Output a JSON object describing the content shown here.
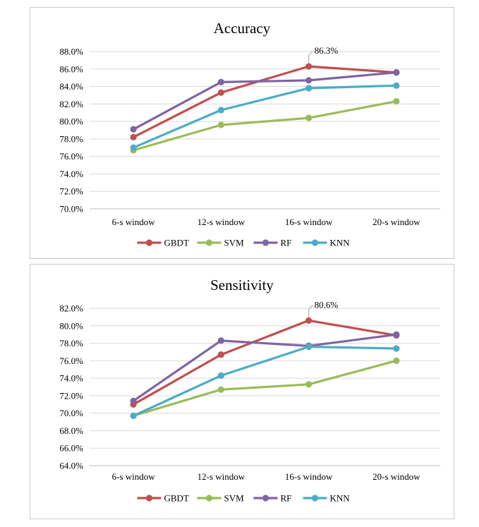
{
  "chart_data": [
    {
      "type": "line",
      "title": "Accuracy",
      "categories": [
        "6-s window",
        "12-s window",
        "16-s window",
        "20-s window"
      ],
      "ylim": [
        70.0,
        88.0
      ],
      "ytick_step": 2.0,
      "grid": true,
      "legend_position": "bottom",
      "series": [
        {
          "name": "GBDT",
          "color": "#c0504d",
          "values": [
            78.2,
            83.3,
            86.3,
            85.6
          ]
        },
        {
          "name": "SVM",
          "color": "#9bbb59",
          "values": [
            76.7,
            79.6,
            80.4,
            82.3
          ]
        },
        {
          "name": "RF",
          "color": "#8064a2",
          "values": [
            79.1,
            84.5,
            84.7,
            85.6
          ]
        },
        {
          "name": "KNN",
          "color": "#4bacc6",
          "values": [
            77.0,
            81.3,
            83.8,
            84.1
          ]
        }
      ],
      "annotation": {
        "series": "GBDT",
        "index": 2,
        "label": "86.3%"
      }
    },
    {
      "type": "line",
      "title": "Sensitivity",
      "categories": [
        "6-s window",
        "12-s window",
        "16-s window",
        "20-s window"
      ],
      "ylim": [
        64.0,
        82.0
      ],
      "ytick_step": 2.0,
      "grid": true,
      "legend_position": "bottom",
      "series": [
        {
          "name": "GBDT",
          "color": "#c0504d",
          "values": [
            71.0,
            76.7,
            80.6,
            78.9
          ]
        },
        {
          "name": "SVM",
          "color": "#9bbb59",
          "values": [
            69.7,
            72.7,
            73.3,
            76.0
          ]
        },
        {
          "name": "RF",
          "color": "#8064a2",
          "values": [
            71.4,
            78.3,
            77.7,
            79.0
          ]
        },
        {
          "name": "KNN",
          "color": "#4bacc6",
          "values": [
            69.7,
            74.3,
            77.6,
            77.4
          ]
        }
      ],
      "annotation": {
        "series": "GBDT",
        "index": 2,
        "label": "80.6%"
      }
    }
  ]
}
